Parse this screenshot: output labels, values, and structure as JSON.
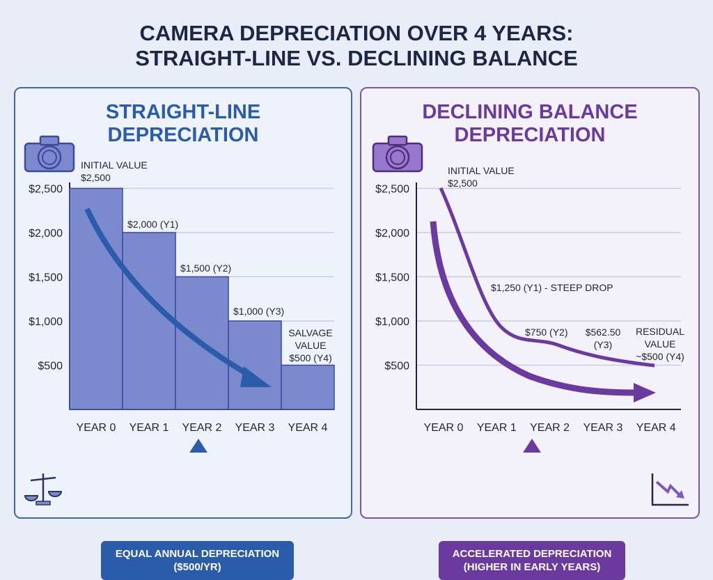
{
  "title": {
    "line1": "CAMERA DEPRECIATION OVER 4 YEARS:",
    "line2": "STRAIGHT-LINE VS. DECLINING BALANCE"
  },
  "colors": {
    "straight_line": "#2a5caa",
    "bar_fill": "#7b89cf",
    "declining": "#6a3a9e",
    "title": "#1d2745"
  },
  "chart_data": [
    {
      "type": "bar",
      "title": [
        "STRAIGHT-LINE",
        "DEPRECIATION"
      ],
      "categories": [
        "YEAR 0",
        "YEAR 1",
        "YEAR 2",
        "YEAR 3",
        "YEAR 4"
      ],
      "values": [
        2500,
        2000,
        1500,
        1000,
        500
      ],
      "ylim": [
        0,
        2500
      ],
      "yticks": [
        "$500",
        "$1,000",
        "$1,500",
        "$2,000",
        "$2,500"
      ],
      "ytick_values": [
        500,
        1000,
        1500,
        2000,
        2500
      ],
      "grid": true,
      "data_labels": [
        [
          "INITIAL VALUE",
          "$2,500"
        ],
        [
          "$2,000 (Y1)"
        ],
        [
          "$1,500 (Y2)"
        ],
        [
          "$1,000 (Y3)"
        ],
        [
          "SALVAGE",
          "VALUE",
          "$500 (Y4)"
        ]
      ],
      "callout": [
        "EQUAL ANNUAL DEPRECIATION",
        "($500/YR)"
      ],
      "icons": [
        "camera-icon",
        "balance-scale-icon",
        "trend-arrow-icon"
      ]
    },
    {
      "type": "line",
      "title": [
        "DECLINING BALANCE",
        "DEPRECIATION"
      ],
      "categories": [
        "YEAR 0",
        "YEAR 1",
        "YEAR 2",
        "YEAR 3",
        "YEAR 4"
      ],
      "x": [
        0,
        1,
        2,
        3,
        4
      ],
      "values": [
        2500,
        1250,
        750,
        562.5,
        500
      ],
      "ylim": [
        0,
        2500
      ],
      "yticks": [
        "$500",
        "$1,000",
        "$1,500",
        "$2,000",
        "$2,500"
      ],
      "ytick_values": [
        500,
        1000,
        1500,
        2000,
        2500
      ],
      "grid": true,
      "data_labels": [
        [
          "INITIAL VALUE",
          "$2,500"
        ],
        [
          "$1,250 (Y1) - STEEP DROP"
        ],
        [
          "$750 (Y2)"
        ],
        [
          "$562.50",
          "(Y3)"
        ],
        [
          "RESIDUAL",
          "VALUE",
          "~$500 (Y4)"
        ]
      ],
      "callout": [
        "ACCELERATED DEPRECIATION",
        "(HIGHER IN EARLY YEARS)"
      ],
      "icons": [
        "camera-icon",
        "declining-chart-icon",
        "trend-arrow-icon"
      ]
    }
  ]
}
